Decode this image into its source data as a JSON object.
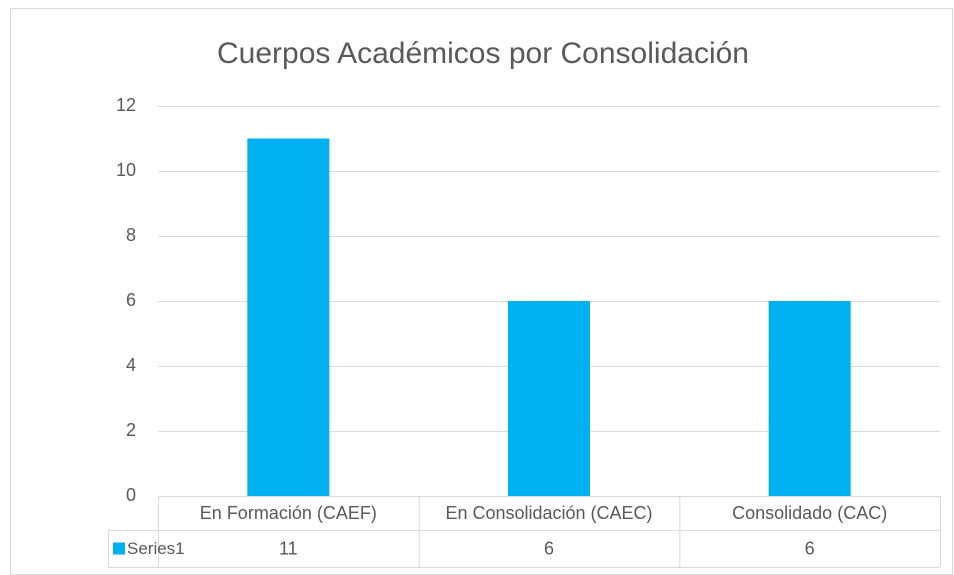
{
  "chart_data": {
    "type": "bar",
    "title": "Cuerpos Académicos por Consolidación",
    "categories": [
      "En Formación (CAEF)",
      "En Consolidación (CAEC)",
      "Consolidado (CAC)"
    ],
    "series": [
      {
        "name": "Series1",
        "color": "#00b0f0",
        "values": [
          11,
          6,
          6
        ]
      }
    ],
    "ylim": [
      0,
      12
    ],
    "yticks": [
      0,
      2,
      4,
      6,
      8,
      10,
      12
    ],
    "grid": true,
    "data_table": true
  }
}
